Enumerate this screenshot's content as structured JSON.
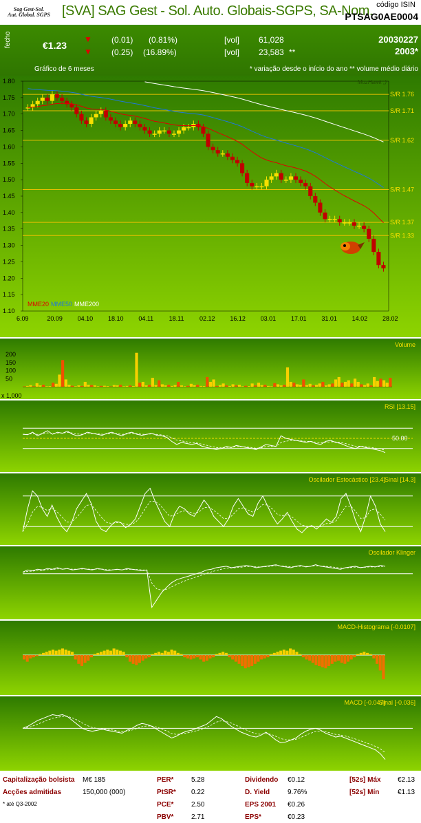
{
  "header": {
    "logo_line1": "Sag Gest-Sol.",
    "logo_line2": "Aut. Global. SGPS",
    "title": "[SVA] SAG Gest - Sol. Auto. Globais-SGPS, SA-Nom.",
    "isin_label": "código ISIN",
    "isin": "PTSAG0AE0004"
  },
  "quote": {
    "close_label": "fecho",
    "price": "€1.23",
    "change1": "(0.01)",
    "pct1": "(0.81%)",
    "change2": "(0.25)",
    "pct2": "(16.89%)",
    "vol_label": "[vol]",
    "vol1": "61,028",
    "vol2": "23,583",
    "vol2_mark": "**",
    "date": "20030227",
    "year": "2003*",
    "chart_label": "Gráfico de 6 meses",
    "footnote": "* variação desde o início do ano  ** volume médio diário"
  },
  "colors": {
    "panel_top": "#2e7a00",
    "panel_bottom": "#8ed400",
    "sr_line": "#e8c000",
    "mme20": "#e00000",
    "mme50": "#1f78d8",
    "mme200": "#ffffff",
    "candle_up": "#f7e000",
    "candle_down": "#c00000"
  },
  "chart_data": [
    {
      "type": "candlestick",
      "watermark": "MozHawk ;)",
      "ylim": [
        1.1,
        1.8
      ],
      "yticks": [
        "1.80",
        "1.75",
        "1.70",
        "1.65",
        "1.60",
        "1.55",
        "1.50",
        "1.45",
        "1.40",
        "1.35",
        "1.30",
        "1.25",
        "1.20",
        "1.15",
        "1.10"
      ],
      "xticks": [
        "6.09",
        "20.09",
        "04.10",
        "18.10",
        "04.11",
        "18.11",
        "02.12",
        "16.12",
        "03.01",
        "17.01",
        "31.01",
        "14.02",
        "28.02"
      ],
      "close": [
        1.72,
        1.73,
        1.74,
        1.75,
        1.74,
        1.76,
        1.75,
        1.74,
        1.73,
        1.72,
        1.7,
        1.68,
        1.67,
        1.69,
        1.7,
        1.71,
        1.69,
        1.68,
        1.67,
        1.66,
        1.67,
        1.68,
        1.67,
        1.66,
        1.65,
        1.64,
        1.64,
        1.65,
        1.65,
        1.64,
        1.64,
        1.65,
        1.66,
        1.66,
        1.67,
        1.66,
        1.64,
        1.6,
        1.59,
        1.58,
        1.58,
        1.57,
        1.56,
        1.55,
        1.52,
        1.49,
        1.48,
        1.48,
        1.48,
        1.5,
        1.51,
        1.52,
        1.5,
        1.5,
        1.51,
        1.5,
        1.49,
        1.48,
        1.45,
        1.43,
        1.4,
        1.38,
        1.38,
        1.38,
        1.37,
        1.37,
        1.37,
        1.36,
        1.36,
        1.35,
        1.32,
        1.28,
        1.24,
        1.23
      ],
      "sr_levels": [
        {
          "label": "S/R 1.76",
          "value": 1.76
        },
        {
          "label": "S/R 1.71",
          "value": 1.71
        },
        {
          "label": "S/R 1.62",
          "value": 1.62
        },
        {
          "label": "S/R 1.47",
          "value": 1.47
        },
        {
          "label": "S/R 1.37",
          "value": 1.37
        },
        {
          "label": "S/R 1.33",
          "value": 1.33
        }
      ],
      "legend": [
        "MME20",
        "MME50",
        "MME200"
      ]
    },
    {
      "type": "bar",
      "title": "Volume",
      "unit": "x 1,000",
      "yticks": [
        "200",
        "150",
        "100",
        "50"
      ],
      "ylim": [
        0,
        230
      ],
      "values": [
        2,
        5,
        10,
        3,
        22,
        8,
        12,
        3,
        4,
        25,
        18,
        75,
        165,
        45,
        12,
        6,
        3,
        8,
        5,
        30,
        12,
        10,
        8,
        3,
        5,
        6,
        4,
        2,
        10,
        8,
        12,
        3,
        5,
        8,
        4,
        210,
        25,
        30,
        8,
        12,
        55,
        10,
        40,
        15,
        8,
        12,
        5,
        10,
        30,
        8,
        3,
        6,
        18,
        9,
        12,
        5,
        4,
        60,
        30,
        45,
        5,
        10,
        20,
        8,
        5,
        15,
        8,
        12,
        3,
        6,
        4,
        20,
        8,
        25,
        10,
        12,
        5,
        3,
        22,
        15,
        8,
        12,
        120,
        30,
        25,
        15,
        12,
        45,
        10,
        18,
        8,
        12,
        20,
        30,
        8,
        15,
        20,
        45,
        60,
        25,
        30,
        40,
        20,
        50,
        30,
        15,
        10,
        20,
        8,
        60,
        35,
        50,
        40,
        25,
        55
      ]
    },
    {
      "type": "line",
      "title": "RSI [13.15]",
      "level_label": "50.00",
      "values": [
        58,
        57,
        62,
        55,
        60,
        65,
        58,
        62,
        60,
        64,
        58,
        55,
        57,
        62,
        60,
        58,
        56,
        60,
        62,
        58,
        55,
        60,
        62,
        58,
        56,
        58,
        60,
        56,
        55,
        52,
        44,
        38,
        42,
        40,
        38,
        40,
        35,
        32,
        30,
        28,
        30,
        34,
        32,
        36,
        34,
        32,
        30,
        28,
        33,
        38,
        36,
        34,
        55,
        50,
        48,
        46,
        44,
        42,
        44,
        40,
        38,
        44,
        46,
        42,
        40,
        36,
        32,
        30,
        34,
        32,
        30,
        28,
        26,
        22
      ],
      "ylim": [
        0,
        100
      ]
    },
    {
      "type": "line",
      "title": "Oscilador Estocástico [23.4]",
      "signal_label": "Sinal [14.3]",
      "values": [
        10,
        55,
        90,
        80,
        55,
        40,
        62,
        38,
        20,
        10,
        28,
        55,
        70,
        85,
        65,
        30,
        15,
        10,
        22,
        30,
        28,
        18,
        24,
        35,
        60,
        85,
        95,
        70,
        50,
        30,
        20,
        45,
        60,
        55,
        45,
        40,
        55,
        72,
        60,
        40,
        30,
        20,
        35,
        60,
        75,
        60,
        45,
        40,
        65,
        80,
        60,
        40,
        25,
        35,
        48,
        30,
        15,
        8,
        18,
        22,
        15,
        25,
        35,
        28,
        40,
        75,
        85,
        60,
        30,
        10,
        40,
        80,
        60,
        25,
        10
      ],
      "ylim": [
        0,
        100
      ]
    },
    {
      "type": "line",
      "title": "Oscilador Klinger",
      "values": [
        2,
        5,
        4,
        6,
        5,
        7,
        6,
        8,
        6,
        7,
        5,
        6,
        7,
        6,
        5,
        7,
        6,
        4,
        5,
        6,
        5,
        7,
        6,
        5,
        4,
        5,
        -45,
        -35,
        -25,
        -18,
        -12,
        -8,
        -6,
        -4,
        -2,
        0,
        2,
        5,
        6,
        8,
        9,
        10,
        8,
        9,
        10,
        11,
        10,
        8,
        9,
        10,
        11,
        12,
        10,
        9,
        8,
        10,
        11,
        9,
        10,
        12,
        10,
        9,
        8,
        7,
        6,
        8,
        9,
        10,
        8,
        9,
        10,
        9,
        11,
        10
      ],
      "ylim": [
        -50,
        20
      ]
    },
    {
      "type": "bar",
      "title": "MACD-Histograma [-0.0107]",
      "values": [
        -4,
        -6,
        -3,
        -2,
        -1,
        1,
        2,
        3,
        4,
        5,
        4,
        5,
        6,
        5,
        4,
        3,
        -4,
        -8,
        -10,
        -7,
        -5,
        -2,
        1,
        2,
        3,
        4,
        5,
        4,
        6,
        5,
        4,
        3,
        -2,
        -6,
        -8,
        -9,
        -7,
        -5,
        -3,
        -2,
        1,
        2,
        3,
        2,
        4,
        3,
        5,
        4,
        2,
        1,
        -2,
        -3,
        -4,
        -3,
        -2,
        -4,
        -6,
        -5,
        -3,
        -2,
        1,
        2,
        3,
        2,
        -2,
        -4,
        -6,
        -8,
        -10,
        -12,
        -11,
        -10,
        -8,
        -6,
        -4,
        -3,
        -2,
        1,
        2,
        3,
        4,
        5,
        4,
        6,
        5,
        3,
        1,
        -2,
        -4,
        -5,
        -7,
        -9,
        -10,
        -11,
        -12,
        -10,
        -8,
        -6,
        -5,
        -7,
        -8,
        -6,
        -4,
        -2,
        1,
        2,
        3,
        2,
        1,
        -3,
        -8,
        -14,
        -22
      ],
      "ylim": [
        -25,
        12
      ]
    },
    {
      "type": "line",
      "title": "MACD [-0.047]",
      "signal_label": "Sinal [-0.036]",
      "values": [
        0,
        2,
        5,
        8,
        10,
        12,
        14,
        13,
        14,
        12,
        8,
        4,
        0,
        -2,
        -3,
        -2,
        -1,
        -2,
        -3,
        -4,
        -5,
        -2,
        0,
        3,
        5,
        4,
        2,
        -1,
        -4,
        -7,
        -10,
        -8,
        -5,
        -3,
        -2,
        0,
        2,
        4,
        8,
        12,
        10,
        6,
        2,
        -1,
        -4,
        -6,
        -8,
        -9,
        -7,
        -4,
        -8,
        -12,
        -15,
        -14,
        -12,
        -10,
        -6,
        -3,
        -1,
        0,
        -2,
        -5,
        -7,
        -9,
        -8,
        -10,
        -12,
        -14,
        -16,
        -18,
        -20,
        -22,
        -26,
        -32
      ],
      "ylim": [
        -35,
        20
      ]
    }
  ],
  "fundamentals": {
    "cap_label": "Capitalização bolsista",
    "cap_value": "M€ 185",
    "shares_label": "Acções admitidas",
    "shares_value": "150,000  (000)",
    "note": "* até Q3-2002",
    "per_label": "PER*",
    "per_value": "5.28",
    "ptsr_label": "PtSR*",
    "ptsr_value": "0.22",
    "pce_label": "PCE*",
    "pce_value": "2.50",
    "pbv_label": "PBV*",
    "pbv_value": "2.71",
    "div_label": "Dividendo",
    "div_value": "€0.12",
    "dyield_label": "D. Yield",
    "dyield_value": "9.76%",
    "eps01_label": "EPS 2001",
    "eps01_value": "€0.26",
    "eps_label": "EPS*",
    "eps_value": "€0.23",
    "max_label": "[52s] Máx",
    "max_value": "€2.13",
    "min_label": "[52s] Mín",
    "min_value": "€1.13"
  }
}
